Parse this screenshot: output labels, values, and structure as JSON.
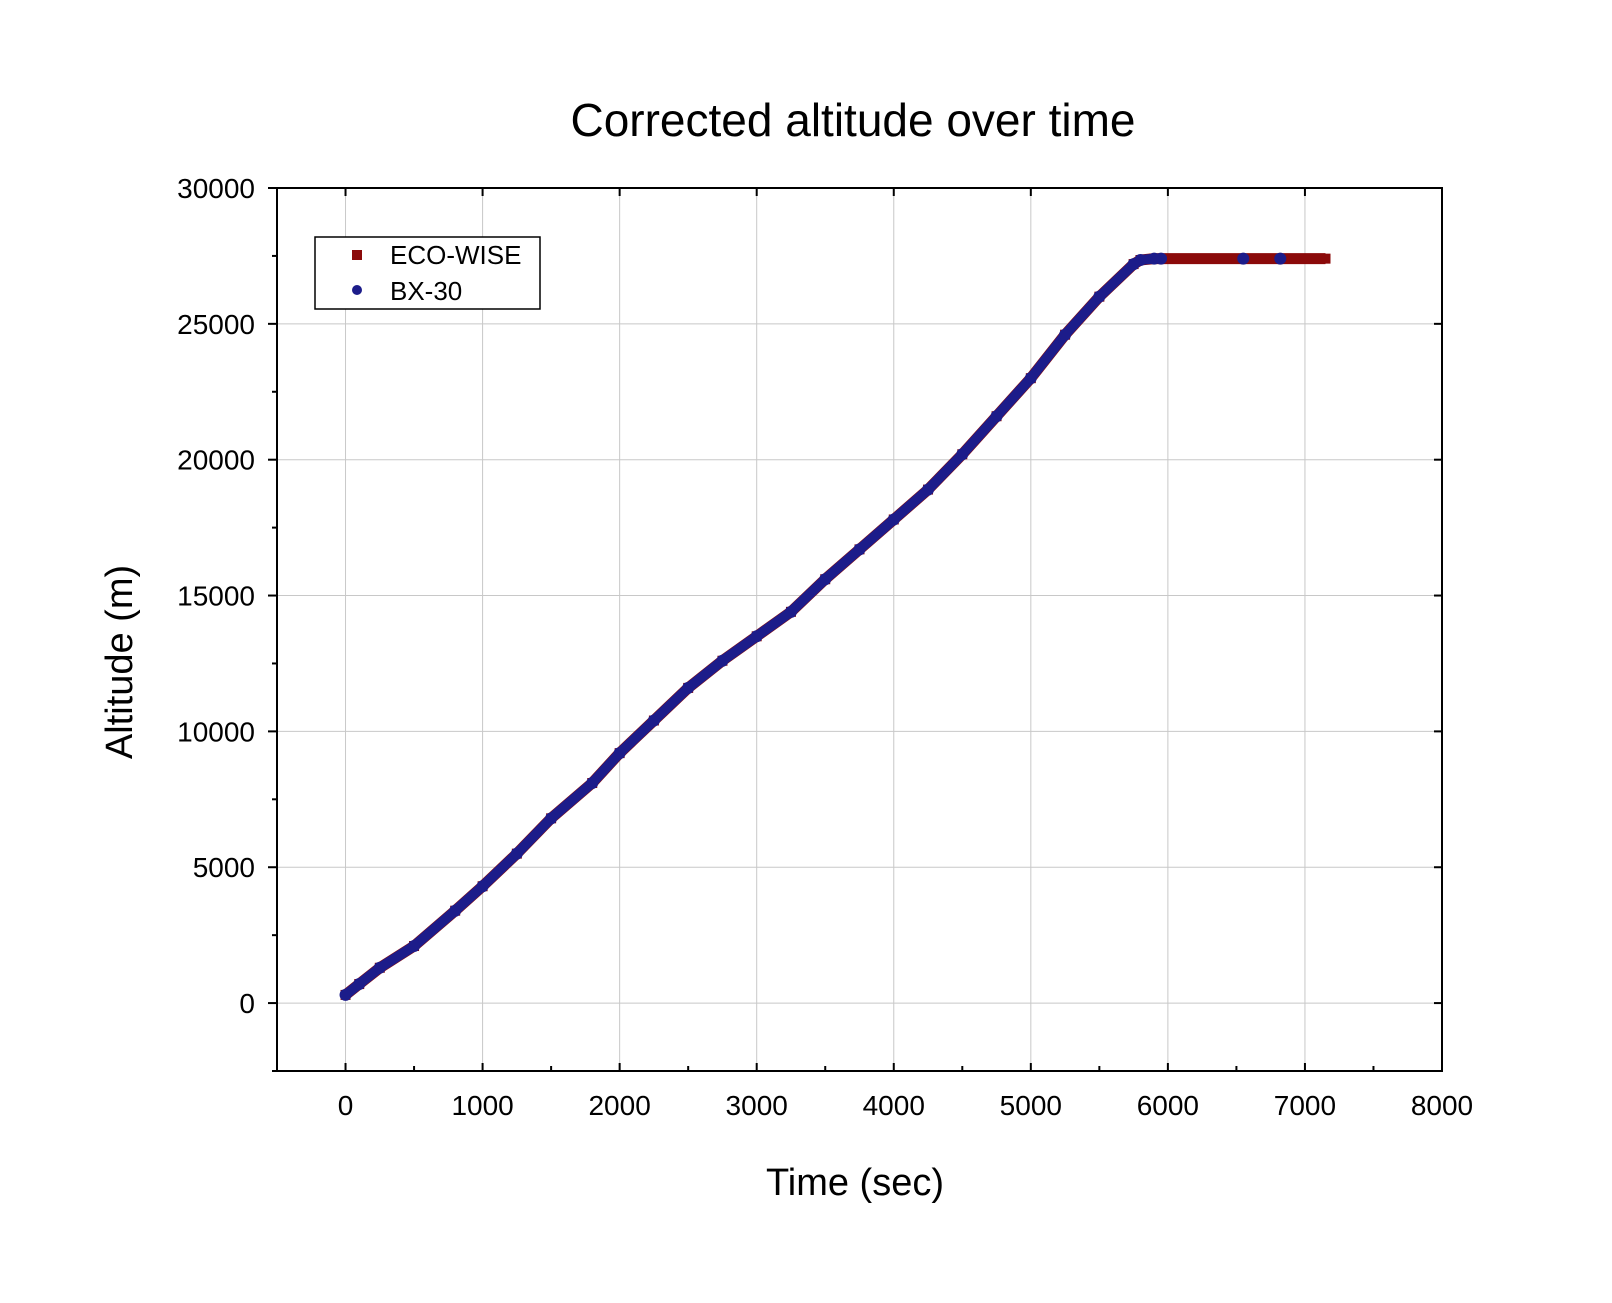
{
  "chart_data": {
    "type": "scatter",
    "title": "Corrected altitude over time",
    "xlabel": "Time (sec)",
    "ylabel": "Altitude (m)",
    "xlim": [
      -500,
      8000
    ],
    "ylim": [
      -2500,
      30000
    ],
    "xticks": [
      0,
      1000,
      2000,
      3000,
      4000,
      5000,
      6000,
      7000,
      8000
    ],
    "xtick_labels": [
      "0",
      "1000",
      "2000",
      "3000",
      "4000",
      "5000",
      "6000",
      "7000",
      "8000"
    ],
    "yticks": [
      0,
      5000,
      10000,
      15000,
      20000,
      25000,
      30000
    ],
    "ytick_labels": [
      "0",
      "5000",
      "10000",
      "15000",
      "20000",
      "25000",
      "30000"
    ],
    "grid": true,
    "legend_position": "top-left",
    "series": [
      {
        "name": "ECO-WISE",
        "marker": "square",
        "color": "#8b0a0a",
        "x": [
          0,
          100,
          250,
          500,
          800,
          1000,
          1250,
          1500,
          1800,
          2000,
          2250,
          2500,
          2750,
          3000,
          3250,
          3500,
          3750,
          4000,
          4250,
          4500,
          4750,
          5000,
          5250,
          5500,
          5750,
          5800,
          5900,
          6000,
          6250,
          6500,
          6750,
          7000,
          7150
        ],
        "y": [
          300,
          700,
          1300,
          2100,
          3400,
          4300,
          5500,
          6800,
          8100,
          9200,
          10400,
          11600,
          12600,
          13500,
          14400,
          15600,
          16700,
          17800,
          18900,
          20200,
          21600,
          23000,
          24600,
          26000,
          27200,
          27350,
          27400,
          27400,
          27400,
          27400,
          27400,
          27400,
          27400
        ]
      },
      {
        "name": "BX-30",
        "marker": "circle",
        "color": "#1c1c8a",
        "x": [
          0,
          100,
          250,
          500,
          800,
          1000,
          1250,
          1500,
          1800,
          2000,
          2250,
          2500,
          2750,
          3000,
          3250,
          3500,
          3750,
          4000,
          4250,
          4500,
          4750,
          5000,
          5250,
          5500,
          5750,
          5800,
          5900,
          5950,
          6550,
          6820
        ],
        "y": [
          300,
          700,
          1300,
          2100,
          3400,
          4300,
          5500,
          6800,
          8100,
          9200,
          10400,
          11600,
          12600,
          13500,
          14400,
          15600,
          16700,
          17800,
          18900,
          20200,
          21600,
          23000,
          24600,
          26000,
          27200,
          27350,
          27400,
          27400,
          27400,
          27400
        ]
      }
    ]
  }
}
